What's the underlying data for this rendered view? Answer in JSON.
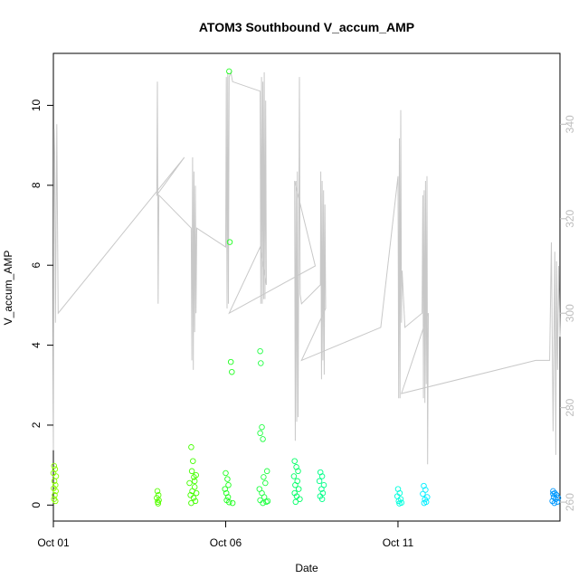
{
  "chart_data": {
    "type": "scatter",
    "title": "ATOM3 Southbound V_accum_AMP",
    "xlabel": "Date",
    "ylabel": "V_accum_AMP",
    "xlim": [
      0,
      14.7
    ],
    "ylim": [
      -0.4,
      11.3
    ],
    "y2lim": [
      256,
      355
    ],
    "x_ticks": [
      {
        "value": 0,
        "label": "Oct 01"
      },
      {
        "value": 5,
        "label": "Oct 06"
      },
      {
        "value": 10,
        "label": "Oct 11"
      }
    ],
    "y_ticks": [
      {
        "value": 0,
        "label": "0"
      },
      {
        "value": 2,
        "label": "2"
      },
      {
        "value": 4,
        "label": "4"
      },
      {
        "value": 6,
        "label": "6"
      },
      {
        "value": 8,
        "label": "8"
      },
      {
        "value": 10,
        "label": "10"
      }
    ],
    "y2_ticks": [
      {
        "value": 260,
        "label": "260"
      },
      {
        "value": 280,
        "label": "280"
      },
      {
        "value": 300,
        "label": "300"
      },
      {
        "value": 320,
        "label": "320"
      },
      {
        "value": 340,
        "label": "340"
      }
    ],
    "series": [
      {
        "kind": "points",
        "axis": "left",
        "points": [
          {
            "x": 0.02,
            "y": 0.98,
            "c": "#88ff00"
          },
          {
            "x": 0.05,
            "y": 0.9,
            "c": "#88ff00"
          },
          {
            "x": 0.0,
            "y": 0.8,
            "c": "#88ff00"
          },
          {
            "x": 0.08,
            "y": 0.72,
            "c": "#88ff00"
          },
          {
            "x": 0.03,
            "y": 0.6,
            "c": "#88ff00"
          },
          {
            "x": 0.06,
            "y": 0.5,
            "c": "#88ff00"
          },
          {
            "x": 0.01,
            "y": 0.42,
            "c": "#88ff00"
          },
          {
            "x": 0.07,
            "y": 0.35,
            "c": "#88ff00"
          },
          {
            "x": 0.04,
            "y": 0.25,
            "c": "#88ff00"
          },
          {
            "x": 0.02,
            "y": 0.15,
            "c": "#88ff00"
          },
          {
            "x": 0.06,
            "y": 0.1,
            "c": "#88ff00"
          },
          {
            "x": 3.02,
            "y": 0.35,
            "c": "#55ff00"
          },
          {
            "x": 3.05,
            "y": 0.25,
            "c": "#55ff00"
          },
          {
            "x": 3.0,
            "y": 0.18,
            "c": "#55ff00"
          },
          {
            "x": 3.06,
            "y": 0.12,
            "c": "#55ff00"
          },
          {
            "x": 3.03,
            "y": 0.08,
            "c": "#55ff00"
          },
          {
            "x": 3.04,
            "y": 0.04,
            "c": "#55ff00"
          },
          {
            "x": 4.0,
            "y": 1.45,
            "c": "#44ff00"
          },
          {
            "x": 4.05,
            "y": 1.1,
            "c": "#44ff00"
          },
          {
            "x": 4.02,
            "y": 0.85,
            "c": "#44ff00"
          },
          {
            "x": 4.08,
            "y": 0.7,
            "c": "#44ff00"
          },
          {
            "x": 3.95,
            "y": 0.55,
            "c": "#44ff00"
          },
          {
            "x": 4.1,
            "y": 0.45,
            "c": "#44ff00"
          },
          {
            "x": 4.03,
            "y": 0.35,
            "c": "#44ff00"
          },
          {
            "x": 3.98,
            "y": 0.25,
            "c": "#44ff00"
          },
          {
            "x": 4.07,
            "y": 0.18,
            "c": "#44ff00"
          },
          {
            "x": 4.12,
            "y": 0.1,
            "c": "#44ff00"
          },
          {
            "x": 4.0,
            "y": 0.05,
            "c": "#44ff00"
          },
          {
            "x": 4.15,
            "y": 0.3,
            "c": "#44ff00"
          },
          {
            "x": 4.1,
            "y": 0.6,
            "c": "#44ff00"
          },
          {
            "x": 4.14,
            "y": 0.75,
            "c": "#44ff00"
          },
          {
            "x": 5.1,
            "y": 10.85,
            "c": "#22ff22"
          },
          {
            "x": 5.12,
            "y": 6.58,
            "c": "#22ff22"
          },
          {
            "x": 5.15,
            "y": 3.58,
            "c": "#22ff22"
          },
          {
            "x": 5.18,
            "y": 3.33,
            "c": "#22ff22"
          },
          {
            "x": 5.0,
            "y": 0.8,
            "c": "#22ff22"
          },
          {
            "x": 5.05,
            "y": 0.65,
            "c": "#22ff22"
          },
          {
            "x": 5.08,
            "y": 0.5,
            "c": "#22ff22"
          },
          {
            "x": 4.98,
            "y": 0.4,
            "c": "#22ff22"
          },
          {
            "x": 5.02,
            "y": 0.3,
            "c": "#22ff22"
          },
          {
            "x": 5.07,
            "y": 0.2,
            "c": "#22ff22"
          },
          {
            "x": 5.03,
            "y": 0.12,
            "c": "#22ff22"
          },
          {
            "x": 5.1,
            "y": 0.07,
            "c": "#22ff22"
          },
          {
            "x": 5.2,
            "y": 0.05,
            "c": "#22ff22"
          },
          {
            "x": 6.0,
            "y": 3.85,
            "c": "#22ff44"
          },
          {
            "x": 6.02,
            "y": 3.55,
            "c": "#22ff44"
          },
          {
            "x": 6.05,
            "y": 1.95,
            "c": "#22ff44"
          },
          {
            "x": 6.0,
            "y": 1.8,
            "c": "#22ff44"
          },
          {
            "x": 6.08,
            "y": 1.65,
            "c": "#22ff44"
          },
          {
            "x": 6.2,
            "y": 0.85,
            "c": "#22ff44"
          },
          {
            "x": 6.1,
            "y": 0.7,
            "c": "#22ff44"
          },
          {
            "x": 6.15,
            "y": 0.55,
            "c": "#22ff44"
          },
          {
            "x": 5.98,
            "y": 0.4,
            "c": "#22ff44"
          },
          {
            "x": 6.05,
            "y": 0.3,
            "c": "#22ff44"
          },
          {
            "x": 6.12,
            "y": 0.2,
            "c": "#22ff44"
          },
          {
            "x": 6.0,
            "y": 0.12,
            "c": "#22ff44"
          },
          {
            "x": 6.18,
            "y": 0.08,
            "c": "#22ff44"
          },
          {
            "x": 6.08,
            "y": 0.05,
            "c": "#22ff44"
          },
          {
            "x": 6.22,
            "y": 0.1,
            "c": "#22ff44"
          },
          {
            "x": 7.0,
            "y": 1.1,
            "c": "#00ff66"
          },
          {
            "x": 7.05,
            "y": 0.95,
            "c": "#00ff66"
          },
          {
            "x": 7.1,
            "y": 0.85,
            "c": "#00ff66"
          },
          {
            "x": 6.98,
            "y": 0.72,
            "c": "#00ff66"
          },
          {
            "x": 7.08,
            "y": 0.6,
            "c": "#00ff66"
          },
          {
            "x": 7.02,
            "y": 0.5,
            "c": "#00ff66"
          },
          {
            "x": 7.12,
            "y": 0.4,
            "c": "#00ff66"
          },
          {
            "x": 7.0,
            "y": 0.3,
            "c": "#00ff66"
          },
          {
            "x": 7.06,
            "y": 0.22,
            "c": "#00ff66"
          },
          {
            "x": 7.15,
            "y": 0.15,
            "c": "#00ff66"
          },
          {
            "x": 7.03,
            "y": 0.08,
            "c": "#00ff66"
          },
          {
            "x": 7.75,
            "y": 0.82,
            "c": "#00ff88"
          },
          {
            "x": 7.8,
            "y": 0.72,
            "c": "#00ff88"
          },
          {
            "x": 7.72,
            "y": 0.6,
            "c": "#00ff88"
          },
          {
            "x": 7.85,
            "y": 0.5,
            "c": "#00ff88"
          },
          {
            "x": 7.78,
            "y": 0.4,
            "c": "#00ff88"
          },
          {
            "x": 7.82,
            "y": 0.3,
            "c": "#00ff88"
          },
          {
            "x": 7.74,
            "y": 0.22,
            "c": "#00ff88"
          },
          {
            "x": 7.8,
            "y": 0.15,
            "c": "#00ff88"
          },
          {
            "x": 10.0,
            "y": 0.4,
            "c": "#00ffdd"
          },
          {
            "x": 10.05,
            "y": 0.3,
            "c": "#00ffdd"
          },
          {
            "x": 9.98,
            "y": 0.22,
            "c": "#00ffdd"
          },
          {
            "x": 10.08,
            "y": 0.15,
            "c": "#00ffdd"
          },
          {
            "x": 10.02,
            "y": 0.1,
            "c": "#00ffdd"
          },
          {
            "x": 10.1,
            "y": 0.06,
            "c": "#00ffdd"
          },
          {
            "x": 10.04,
            "y": 0.04,
            "c": "#00ffdd"
          },
          {
            "x": 10.75,
            "y": 0.48,
            "c": "#00eeff"
          },
          {
            "x": 10.8,
            "y": 0.38,
            "c": "#00eeff"
          },
          {
            "x": 10.72,
            "y": 0.28,
            "c": "#00eeff"
          },
          {
            "x": 10.85,
            "y": 0.2,
            "c": "#00eeff"
          },
          {
            "x": 10.78,
            "y": 0.14,
            "c": "#00eeff"
          },
          {
            "x": 10.82,
            "y": 0.08,
            "c": "#00eeff"
          },
          {
            "x": 10.76,
            "y": 0.05,
            "c": "#00eeff"
          },
          {
            "x": 14.5,
            "y": 0.35,
            "c": "#0099ff"
          },
          {
            "x": 14.55,
            "y": 0.3,
            "c": "#0099ff"
          },
          {
            "x": 14.6,
            "y": 0.25,
            "c": "#0099ff"
          },
          {
            "x": 14.52,
            "y": 0.2,
            "c": "#0099ff"
          },
          {
            "x": 14.58,
            "y": 0.15,
            "c": "#0099ff"
          },
          {
            "x": 14.48,
            "y": 0.1,
            "c": "#0099ff"
          },
          {
            "x": 14.62,
            "y": 0.08,
            "c": "#0099ff"
          },
          {
            "x": 14.54,
            "y": 0.05,
            "c": "#0099ff"
          },
          {
            "x": 14.65,
            "y": 0.18,
            "c": "#0099ff"
          },
          {
            "x": 14.5,
            "y": 0.28,
            "c": "#0099ff"
          }
        ]
      },
      {
        "kind": "line",
        "axis": "right",
        "color": "#c8c8c8",
        "points": [
          [
            0.0,
            271
          ],
          [
            0.02,
            339
          ],
          [
            0.04,
            334
          ],
          [
            0.06,
            298
          ],
          [
            0.1,
            340
          ],
          [
            0.14,
            300
          ],
          [
            3.8,
            333
          ],
          [
            3.0,
            325
          ],
          [
            3.02,
            349
          ],
          [
            3.04,
            302
          ],
          [
            3.06,
            325
          ],
          [
            4.0,
            318
          ],
          [
            4.02,
            290
          ],
          [
            4.04,
            333
          ],
          [
            4.06,
            288
          ],
          [
            4.08,
            330
          ],
          [
            4.1,
            296
          ],
          [
            4.12,
            327
          ],
          [
            4.14,
            300
          ],
          [
            4.16,
            318
          ],
          [
            5.0,
            314
          ],
          [
            5.02,
            350
          ],
          [
            5.04,
            301
          ],
          [
            5.06,
            351
          ],
          [
            5.08,
            302
          ],
          [
            5.1,
            350
          ],
          [
            5.15,
            351
          ],
          [
            5.2,
            349
          ],
          [
            6.0,
            347
          ],
          [
            6.02,
            302
          ],
          [
            6.04,
            350
          ],
          [
            6.06,
            302
          ],
          [
            6.08,
            349
          ],
          [
            6.1,
            303
          ],
          [
            6.12,
            351
          ],
          [
            6.14,
            303
          ],
          [
            6.16,
            345
          ],
          [
            6.18,
            306
          ],
          [
            6.0,
            314
          ],
          [
            5.1,
            300
          ],
          [
            7.6,
            310
          ],
          [
            7.0,
            328
          ],
          [
            7.02,
            273
          ],
          [
            7.04,
            328
          ],
          [
            7.06,
            277
          ],
          [
            7.08,
            330
          ],
          [
            7.1,
            278
          ],
          [
            7.12,
            308
          ],
          [
            7.14,
            350
          ],
          [
            7.16,
            304
          ],
          [
            7.2,
            302
          ],
          [
            7.75,
            306
          ],
          [
            7.76,
            330
          ],
          [
            7.78,
            286
          ],
          [
            7.8,
            328
          ],
          [
            7.82,
            290
          ],
          [
            7.84,
            326
          ],
          [
            7.86,
            287
          ],
          [
            7.88,
            323
          ],
          [
            7.9,
            301
          ],
          [
            7.2,
            290
          ],
          [
            9.5,
            297
          ],
          [
            10.0,
            329
          ],
          [
            10.02,
            282
          ],
          [
            10.04,
            337
          ],
          [
            10.06,
            282
          ],
          [
            10.08,
            343
          ],
          [
            10.1,
            298
          ],
          [
            10.12,
            309
          ],
          [
            10.2,
            297
          ],
          [
            10.7,
            300
          ],
          [
            10.72,
            325
          ],
          [
            10.74,
            282
          ],
          [
            10.76,
            326
          ],
          [
            10.78,
            281
          ],
          [
            10.8,
            328
          ],
          [
            10.82,
            285
          ],
          [
            10.84,
            329
          ],
          [
            10.86,
            268
          ],
          [
            10.88,
            300
          ],
          [
            10.1,
            283
          ],
          [
            14.0,
            290
          ],
          [
            14.4,
            290
          ],
          [
            14.45,
            315
          ],
          [
            14.5,
            275
          ],
          [
            14.55,
            313
          ],
          [
            14.58,
            270
          ],
          [
            14.6,
            311
          ],
          [
            14.63,
            288
          ],
          [
            14.66,
            310
          ],
          [
            14.7,
            295
          ]
        ]
      }
    ]
  }
}
